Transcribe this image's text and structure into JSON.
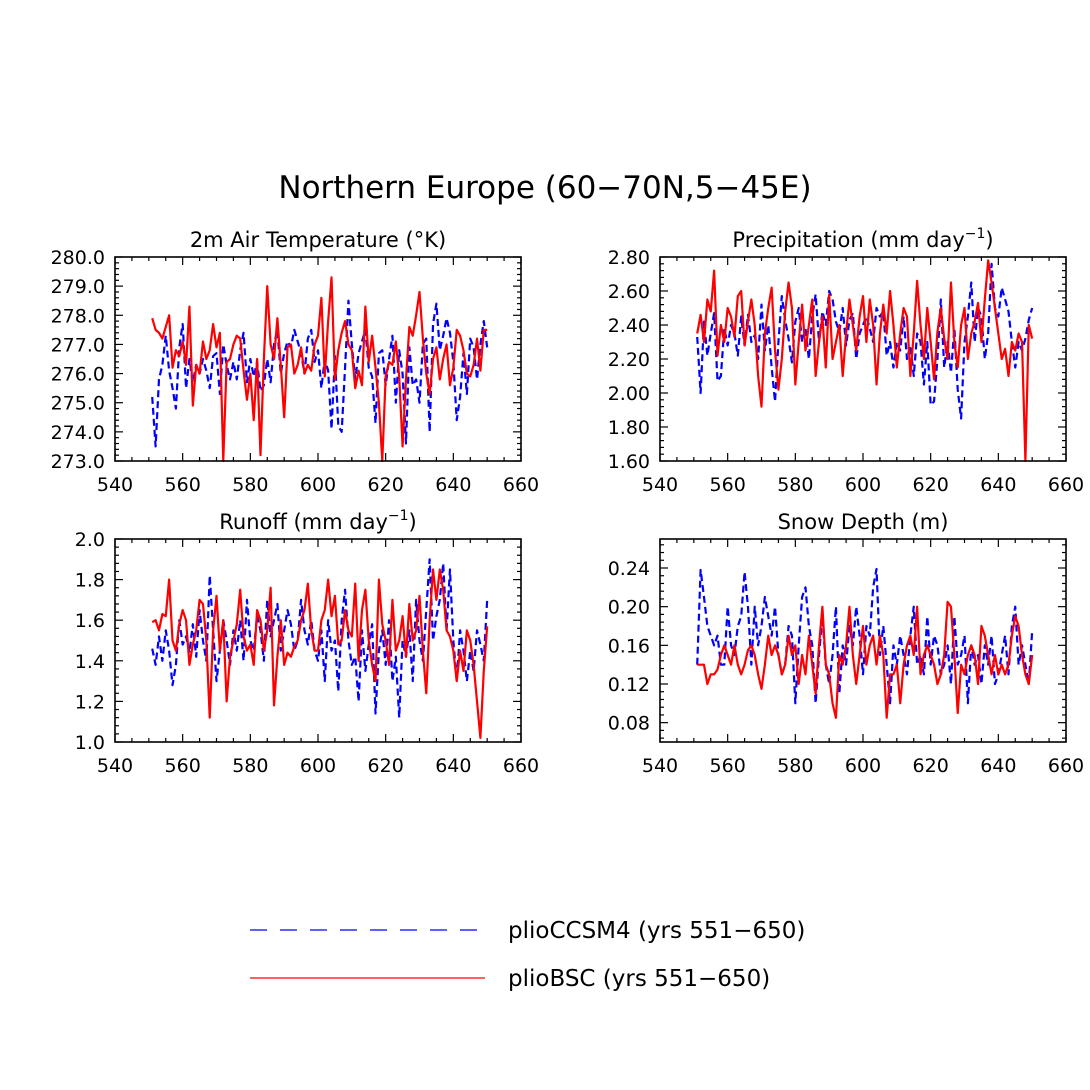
{
  "figure_title": "Northern Europe (60−70N,5−45E)",
  "legend": {
    "entries": [
      {
        "label": "plioCCSM4 (yrs 551−650)",
        "color": "#0000ff",
        "style": "dashed"
      },
      {
        "label": "plioBSC (yrs 551−650)",
        "color": "#ff0000",
        "style": "solid"
      }
    ]
  },
  "colors": {
    "series_a": "#0000ff",
    "series_b": "#ff0000",
    "axis": "#000000"
  },
  "chart_data": [
    {
      "type": "line",
      "title": "2m Air Temperature (°K)",
      "xlim": [
        540,
        660
      ],
      "ylim": [
        273,
        280
      ],
      "xticks": [
        540,
        560,
        580,
        600,
        620,
        640,
        660
      ],
      "yticks": [
        273,
        274,
        275,
        276,
        277,
        278,
        279,
        280
      ],
      "ytick_labels": [
        "273.0",
        "274.0",
        "275.0",
        "276.0",
        "277.0",
        "278.0",
        "279.0",
        "280.0"
      ],
      "x_start": 551,
      "series": [
        {
          "name": "plioCCSM4 (yrs 551−650)",
          "values": [
            275.2,
            273.5,
            275.8,
            276.3,
            277.3,
            276.1,
            275.5,
            274.8,
            276.9,
            277.7,
            275.5,
            276.5,
            275.7,
            276.3,
            276.0,
            276.5,
            276.1,
            275.5,
            276.6,
            276.7,
            275.3,
            277.0,
            276.3,
            275.8,
            276.4,
            275.8,
            276.8,
            277.4,
            275.7,
            276.5,
            275.9,
            276.4,
            275.4,
            275.6,
            276.5,
            275.7,
            277.0,
            277.5,
            276.0,
            276.7,
            277.1,
            276.9,
            277.5,
            277.1,
            276.7,
            276.0,
            277.2,
            277.5,
            276.4,
            276.8,
            275.5,
            276.5,
            276.1,
            274.1,
            276.6,
            274.2,
            274.0,
            276.2,
            278.5,
            277.0,
            275.8,
            276.7,
            277.1,
            277.5,
            276.2,
            275.9,
            274.3,
            276.7,
            276.8,
            275.6,
            276.5,
            277.3,
            275.0,
            276.8,
            276.0,
            273.6,
            276.9,
            275.6,
            275.8,
            275.0,
            277.0,
            277.2,
            274.0,
            277.7,
            278.4,
            276.8,
            277.3,
            277.9,
            277.4,
            276.4,
            274.4,
            275.2,
            276.7,
            275.3,
            277.2,
            276.9,
            275.8,
            277.0,
            277.8,
            276.9
          ]
        },
        {
          "name": "plioBSC (yrs 551−650)",
          "values": [
            277.9,
            277.5,
            277.4,
            277.2,
            277.6,
            278.0,
            276.2,
            276.8,
            276.6,
            277.1,
            276.3,
            278.3,
            274.9,
            276.3,
            276.0,
            277.1,
            276.5,
            276.8,
            277.7,
            276.9,
            277.4,
            273.0,
            276.4,
            276.5,
            277.0,
            277.3,
            277.2,
            276.1,
            275.1,
            276.0,
            274.4,
            276.5,
            273.2,
            276.5,
            279.0,
            277.0,
            276.5,
            277.9,
            276.3,
            274.5,
            276.9,
            277.0,
            276.0,
            276.3,
            276.9,
            276.0,
            276.3,
            276.1,
            277.0,
            277.3,
            278.6,
            275.9,
            277.8,
            279.3,
            275.8,
            276.8,
            277.4,
            277.8,
            277.0,
            276.8,
            275.5,
            276.1,
            275.6,
            278.3,
            276.4,
            277.3,
            276.2,
            275.0,
            273.0,
            275.9,
            276.4,
            276.3,
            277.1,
            275.9,
            273.5,
            275.8,
            277.6,
            277.3,
            278.0,
            278.8,
            277.2,
            276.0,
            275.3,
            276.5,
            276.9,
            275.8,
            276.5,
            277.0,
            275.6,
            276.2,
            277.5,
            277.3,
            276.8,
            276.0,
            275.9,
            276.3,
            277.2,
            276.1,
            277.5,
            277.5
          ]
        }
      ]
    },
    {
      "type": "line",
      "title": "Precipitation (mm day",
      "title_sup": "−1",
      "title_end": ")",
      "xlim": [
        540,
        660
      ],
      "ylim": [
        1.6,
        2.8
      ],
      "xticks": [
        540,
        560,
        580,
        600,
        620,
        640,
        660
      ],
      "yticks": [
        1.6,
        1.8,
        2.0,
        2.2,
        2.4,
        2.6,
        2.8
      ],
      "ytick_labels": [
        "1.60",
        "1.80",
        "2.00",
        "2.20",
        "2.40",
        "2.60",
        "2.80"
      ],
      "x_start": 551,
      "series": [
        {
          "name": "plioCCSM4 (yrs 551−650)",
          "values": [
            2.33,
            2.0,
            2.42,
            2.22,
            2.35,
            2.47,
            2.07,
            2.1,
            2.38,
            2.28,
            2.4,
            2.35,
            2.22,
            2.45,
            2.28,
            2.46,
            2.3,
            2.34,
            2.2,
            2.52,
            2.25,
            2.4,
            2.15,
            1.95,
            2.3,
            2.57,
            2.43,
            2.32,
            2.18,
            2.42,
            2.5,
            2.3,
            2.38,
            2.2,
            2.45,
            2.58,
            2.3,
            2.48,
            2.4,
            2.6,
            2.55,
            2.42,
            2.36,
            2.5,
            2.28,
            2.43,
            2.47,
            2.2,
            2.35,
            2.4,
            2.45,
            2.38,
            2.3,
            2.5,
            2.45,
            2.48,
            2.22,
            2.3,
            2.15,
            2.3,
            2.25,
            2.45,
            2.2,
            2.28,
            2.1,
            2.35,
            2.3,
            2.05,
            2.3,
            1.93,
            1.95,
            2.2,
            2.55,
            2.15,
            2.3,
            2.12,
            2.38,
            2.02,
            1.85,
            2.3,
            2.45,
            2.65,
            2.3,
            2.5,
            2.45,
            2.2,
            2.35,
            2.76,
            2.5,
            2.45,
            2.62,
            2.55,
            2.48,
            2.3,
            2.15,
            2.3,
            2.25,
            2.32,
            2.43,
            2.5
          ]
        },
        {
          "name": "plioBSC (yrs 551−650)",
          "values": [
            2.35,
            2.46,
            2.3,
            2.55,
            2.48,
            2.72,
            2.22,
            2.4,
            2.3,
            2.5,
            2.45,
            2.33,
            2.57,
            2.6,
            2.28,
            2.42,
            2.55,
            2.4,
            2.1,
            1.92,
            2.35,
            2.5,
            2.62,
            2.25,
            2.02,
            2.2,
            2.48,
            2.65,
            2.5,
            2.05,
            2.3,
            2.52,
            2.25,
            2.4,
            2.55,
            2.1,
            2.3,
            2.45,
            2.15,
            2.58,
            2.2,
            2.3,
            2.4,
            2.1,
            2.35,
            2.55,
            2.4,
            2.25,
            2.45,
            2.57,
            2.3,
            2.55,
            2.4,
            2.05,
            2.35,
            2.52,
            2.35,
            2.6,
            2.4,
            2.15,
            2.35,
            2.5,
            2.45,
            2.1,
            2.35,
            2.66,
            2.4,
            2.2,
            2.5,
            2.3,
            2.08,
            2.36,
            2.5,
            2.32,
            2.2,
            2.65,
            2.3,
            2.15,
            2.4,
            2.5,
            2.2,
            2.35,
            2.42,
            2.53,
            2.3,
            2.55,
            2.78,
            2.65,
            2.5,
            2.35,
            2.2,
            2.26,
            2.1,
            2.3,
            2.25,
            2.35,
            2.3,
            1.6,
            2.4,
            2.32
          ]
        }
      ]
    },
    {
      "type": "line",
      "title": "Runoff (mm day",
      "title_sup": "−1",
      "title_end": ")",
      "xlim": [
        540,
        660
      ],
      "ylim": [
        1.0,
        2.0
      ],
      "xticks": [
        540,
        560,
        580,
        600,
        620,
        640,
        660
      ],
      "yticks": [
        1.0,
        1.2,
        1.4,
        1.6,
        1.8,
        2.0
      ],
      "ytick_labels": [
        "1.0",
        "1.2",
        "1.4",
        "1.6",
        "1.8",
        "2.0"
      ],
      "x_start": 551,
      "series": [
        {
          "name": "plioCCSM4 (yrs 551−650)",
          "values": [
            1.46,
            1.38,
            1.52,
            1.4,
            1.55,
            1.45,
            1.28,
            1.38,
            1.6,
            1.48,
            1.52,
            1.44,
            1.58,
            1.42,
            1.65,
            1.5,
            1.4,
            1.82,
            1.55,
            1.3,
            1.45,
            1.6,
            1.5,
            1.38,
            1.55,
            1.45,
            1.6,
            1.4,
            1.7,
            1.5,
            1.45,
            1.62,
            1.55,
            1.4,
            1.7,
            1.52,
            1.6,
            1.68,
            1.45,
            1.55,
            1.65,
            1.58,
            1.45,
            1.5,
            1.7,
            1.55,
            1.48,
            1.6,
            1.45,
            1.4,
            1.55,
            1.3,
            1.6,
            1.45,
            1.5,
            1.25,
            1.6,
            1.75,
            1.5,
            1.38,
            1.42,
            1.2,
            1.55,
            1.35,
            1.48,
            1.58,
            1.14,
            1.45,
            1.55,
            1.38,
            1.6,
            1.3,
            1.42,
            1.12,
            1.5,
            1.42,
            1.55,
            1.3,
            1.7,
            1.5,
            1.4,
            1.65,
            1.9,
            1.5,
            1.62,
            1.7,
            1.88,
            1.55,
            1.85,
            1.5,
            1.3,
            1.55,
            1.45,
            1.3,
            1.45,
            1.35,
            1.55,
            1.48,
            1.4,
            1.7
          ]
        },
        {
          "name": "plioBSC (yrs 551−650)",
          "values": [
            1.59,
            1.6,
            1.55,
            1.63,
            1.62,
            1.8,
            1.5,
            1.45,
            1.58,
            1.65,
            1.6,
            1.38,
            1.48,
            1.55,
            1.7,
            1.68,
            1.5,
            1.12,
            1.55,
            1.72,
            1.45,
            1.6,
            1.2,
            1.42,
            1.5,
            1.58,
            1.75,
            1.52,
            1.45,
            1.48,
            1.38,
            1.65,
            1.6,
            1.45,
            1.55,
            1.76,
            1.18,
            1.42,
            1.6,
            1.38,
            1.44,
            1.42,
            1.47,
            1.5,
            1.6,
            1.65,
            1.78,
            1.55,
            1.45,
            1.45,
            1.6,
            1.65,
            1.8,
            1.62,
            1.72,
            1.48,
            1.5,
            1.65,
            1.55,
            1.52,
            1.78,
            1.4,
            1.65,
            1.75,
            1.5,
            1.38,
            1.3,
            1.8,
            1.58,
            1.5,
            1.38,
            1.7,
            1.45,
            1.5,
            1.62,
            1.42,
            1.68,
            1.5,
            1.55,
            1.72,
            1.45,
            1.24,
            1.6,
            1.85,
            1.7,
            1.85,
            1.75,
            1.55,
            1.52,
            1.45,
            1.3,
            1.45,
            1.35,
            1.55,
            1.5,
            1.38,
            1.2,
            1.02,
            1.35,
            1.57
          ]
        }
      ]
    },
    {
      "type": "line",
      "title": "Snow Depth (m)",
      "xlim": [
        540,
        660
      ],
      "ylim": [
        0.06,
        0.27
      ],
      "xticks": [
        540,
        560,
        580,
        600,
        620,
        640,
        660
      ],
      "yticks": [
        0.08,
        0.12,
        0.16,
        0.2,
        0.24
      ],
      "ytick_labels": [
        "0.08",
        "0.12",
        "0.16",
        "0.20",
        "0.24"
      ],
      "x_start": 551,
      "series": [
        {
          "name": "plioCCSM4 (yrs 551−650)",
          "values": [
            0.14,
            0.238,
            0.21,
            0.18,
            0.17,
            0.16,
            0.17,
            0.14,
            0.14,
            0.2,
            0.16,
            0.15,
            0.18,
            0.19,
            0.236,
            0.2,
            0.14,
            0.2,
            0.16,
            0.18,
            0.21,
            0.19,
            0.17,
            0.2,
            0.15,
            0.13,
            0.14,
            0.18,
            0.17,
            0.1,
            0.16,
            0.21,
            0.22,
            0.18,
            0.16,
            0.1,
            0.15,
            0.19,
            0.14,
            0.12,
            0.15,
            0.2,
            0.11,
            0.16,
            0.14,
            0.18,
            0.16,
            0.2,
            0.17,
            0.13,
            0.18,
            0.17,
            0.22,
            0.239,
            0.15,
            0.18,
            0.14,
            0.1,
            0.16,
            0.14,
            0.17,
            0.15,
            0.13,
            0.17,
            0.2,
            0.14,
            0.15,
            0.13,
            0.19,
            0.14,
            0.17,
            0.16,
            0.13,
            0.14,
            0.16,
            0.12,
            0.19,
            0.14,
            0.15,
            0.17,
            0.1,
            0.16,
            0.14,
            0.15,
            0.12,
            0.16,
            0.14,
            0.17,
            0.12,
            0.13,
            0.15,
            0.17,
            0.13,
            0.18,
            0.2,
            0.14,
            0.16,
            0.14,
            0.12,
            0.175
          ]
        },
        {
          "name": "plioBSC (yrs 551−650)",
          "values": [
            0.14,
            0.14,
            0.14,
            0.12,
            0.13,
            0.13,
            0.135,
            0.15,
            0.16,
            0.15,
            0.14,
            0.16,
            0.14,
            0.13,
            0.14,
            0.155,
            0.16,
            0.15,
            0.13,
            0.115,
            0.14,
            0.17,
            0.15,
            0.16,
            0.15,
            0.13,
            0.14,
            0.17,
            0.15,
            0.16,
            0.12,
            0.15,
            0.13,
            0.17,
            0.14,
            0.11,
            0.16,
            0.2,
            0.14,
            0.13,
            0.1,
            0.085,
            0.15,
            0.14,
            0.16,
            0.2,
            0.15,
            0.12,
            0.15,
            0.18,
            0.14,
            0.16,
            0.17,
            0.14,
            0.17,
            0.15,
            0.085,
            0.13,
            0.13,
            0.14,
            0.1,
            0.14,
            0.16,
            0.17,
            0.15,
            0.2,
            0.13,
            0.15,
            0.16,
            0.15,
            0.14,
            0.12,
            0.13,
            0.15,
            0.205,
            0.2,
            0.15,
            0.09,
            0.14,
            0.13,
            0.15,
            0.16,
            0.15,
            0.12,
            0.18,
            0.17,
            0.15,
            0.13,
            0.15,
            0.13,
            0.14,
            0.13,
            0.14,
            0.17,
            0.19,
            0.18,
            0.15,
            0.13,
            0.12,
            0.15
          ]
        }
      ]
    }
  ]
}
